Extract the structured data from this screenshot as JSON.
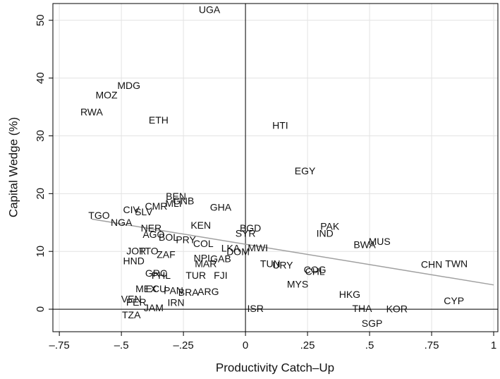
{
  "chart_data": {
    "type": "scatter",
    "xlabel": "Productivity Catch–Up",
    "ylabel": "Capital Wedge (%)",
    "xlim": [
      -0.776,
      1.017
    ],
    "ylim": [
      -3.9,
      52.9
    ],
    "xticks": [
      {
        "value": -0.75,
        "label": "–.75"
      },
      {
        "value": -0.5,
        "label": "–.5"
      },
      {
        "value": -0.25,
        "label": "–.25"
      },
      0,
      {
        "value": 0.25,
        "label": ".25"
      },
      {
        "value": 0.5,
        "label": ".5"
      },
      {
        "value": 0.75,
        "label": ".75"
      },
      1
    ],
    "yticks": [
      0,
      10,
      20,
      30,
      40,
      50
    ],
    "grid": true,
    "grid_color": "#e3e3e3",
    "ref_x": [
      0
    ],
    "ref_y": [
      0
    ],
    "labels": [
      "UGA",
      "MDG",
      "MOZ",
      "RWA",
      "ETH",
      "HTI",
      "EGY",
      "BEN",
      "MLI",
      "GNB",
      "CMR",
      "CIV",
      "SLV",
      "GHA",
      "TGO",
      "NGA",
      "KEN",
      "NER",
      "BGD",
      "SYR",
      "PAK",
      "IND",
      "AGO",
      "BOL",
      "PRY",
      "COL",
      "MUS",
      "BWA",
      "LKA",
      "MWI",
      "DOM",
      "JOR",
      "TTO",
      "ZAF",
      "HND",
      "NPL",
      "GAB",
      "MAR",
      "TUN",
      "URY",
      "CHN",
      "TWN",
      "COG",
      "CHL",
      "TUR",
      "FJI",
      "GRC",
      "PHL",
      "MYS",
      "MEX",
      "ECU",
      "PAN",
      "BRA",
      "ARG",
      "HKG",
      "VEN",
      "PER",
      "CYP",
      "IRN",
      "JAM",
      "ISR",
      "THA",
      "KOR",
      "TZA",
      "SGP"
    ],
    "x": [
      -0.145,
      -0.47,
      -0.56,
      -0.62,
      -0.35,
      0.14,
      0.24,
      -0.28,
      -0.29,
      -0.25,
      -0.36,
      -0.46,
      -0.41,
      -0.1,
      -0.59,
      -0.5,
      -0.18,
      -0.38,
      0.02,
      0.0,
      0.34,
      0.32,
      -0.37,
      -0.31,
      -0.24,
      -0.17,
      0.54,
      0.48,
      -0.06,
      0.05,
      -0.03,
      -0.44,
      -0.39,
      -0.32,
      -0.45,
      -0.17,
      -0.1,
      -0.16,
      0.1,
      0.15,
      0.75,
      0.85,
      0.28,
      0.28,
      -0.2,
      -0.1,
      -0.36,
      -0.34,
      0.21,
      -0.4,
      -0.36,
      -0.29,
      -0.23,
      -0.15,
      0.42,
      -0.46,
      -0.44,
      0.84,
      -0.28,
      -0.37,
      0.04,
      0.47,
      0.61,
      -0.46,
      0.51
    ],
    "y": [
      51.7,
      38.6,
      36.9,
      34.0,
      32.6,
      31.7,
      23.8,
      19.4,
      18.2,
      18.6,
      17.7,
      17.1,
      16.7,
      17.5,
      16.1,
      14.9,
      14.4,
      13.9,
      13.9,
      13.0,
      14.2,
      13.0,
      12.8,
      12.3,
      11.9,
      11.2,
      11.6,
      11.0,
      10.4,
      10.5,
      9.8,
      9.9,
      9.9,
      9.3,
      8.2,
      8.7,
      8.6,
      7.7,
      7.7,
      7.5,
      7.6,
      7.7,
      6.7,
      6.4,
      5.7,
      5.7,
      6.1,
      5.7,
      4.2,
      3.4,
      3.4,
      3.1,
      2.8,
      2.9,
      2.4,
      1.6,
      1.1,
      1.3,
      1.0,
      0.1,
      0.0,
      0.0,
      -0.1,
      -1.1,
      -2.6
    ],
    "fit_line": {
      "x": [
        -0.62,
        1.0
      ],
      "y": [
        15.6,
        4.2
      ],
      "color": "#a0a0a0"
    },
    "color": "#111111"
  }
}
